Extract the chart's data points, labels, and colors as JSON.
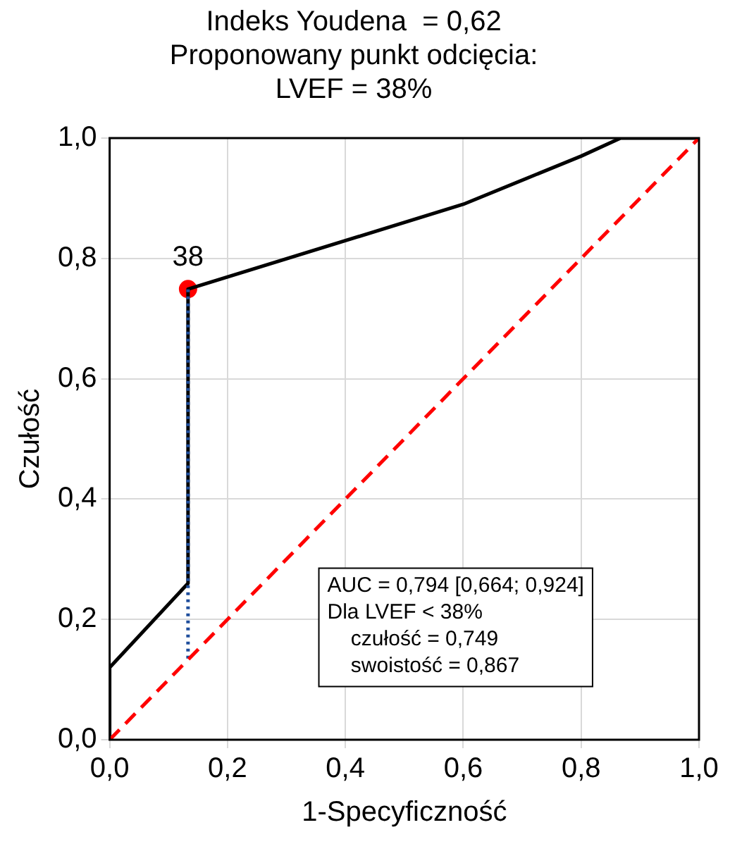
{
  "chart_data": {
    "type": "line",
    "title": "Indeks Youdena  = 0,62\nProponowany punkt odcięcia:\nLVEF = 38%",
    "xlabel": "1-Specyficzność",
    "ylabel": "Czułość",
    "xlim": [
      0,
      1
    ],
    "ylim": [
      0,
      1
    ],
    "xticks": [
      {
        "value": 0,
        "label": "0,0"
      },
      {
        "value": 0.2,
        "label": "0,2"
      },
      {
        "value": 0.4,
        "label": "0,4"
      },
      {
        "value": 0.6,
        "label": "0,6"
      },
      {
        "value": 0.8,
        "label": "0,8"
      },
      {
        "value": 1,
        "label": "1,0"
      }
    ],
    "yticks": [
      {
        "value": 0,
        "label": "0,0"
      },
      {
        "value": 0.2,
        "label": "0,2"
      },
      {
        "value": 0.4,
        "label": "0,4"
      },
      {
        "value": 0.6,
        "label": "0,6"
      },
      {
        "value": 0.8,
        "label": "0,8"
      },
      {
        "value": 1,
        "label": "1,0"
      }
    ],
    "grid": true,
    "legend": false,
    "series": [
      {
        "type": "line",
        "color": "#ff0000",
        "line_style": "dashed",
        "marker": "none",
        "x": [
          0,
          1
        ],
        "values": [
          0,
          1
        ]
      },
      {
        "type": "line",
        "color": "#1f4e9c",
        "line_style": "dotted",
        "marker": "none",
        "x": [
          0.133,
          0.133
        ],
        "values": [
          0.135,
          0.749
        ]
      },
      {
        "type": "line",
        "color": "#000000",
        "line_style": "solid",
        "marker": "none",
        "x": [
          0,
          0,
          0.133,
          0.133,
          0.6,
          0.8,
          0.867,
          1
        ],
        "values": [
          0,
          0.12,
          0.26,
          0.749,
          0.89,
          0.97,
          1,
          1
        ]
      },
      {
        "type": "scatter",
        "color": "#ff0000",
        "marker": "circle",
        "x": [
          0.133
        ],
        "values": [
          0.749
        ]
      }
    ],
    "annotations": [
      {
        "text": "38",
        "x": 0.133,
        "y": 0.749
      },
      "AUC = 0,794 [0,664; 0,924]",
      "Dla LVEF < 38%",
      "    czułość = 0,749",
      "    swoistość = 0,867"
    ]
  }
}
